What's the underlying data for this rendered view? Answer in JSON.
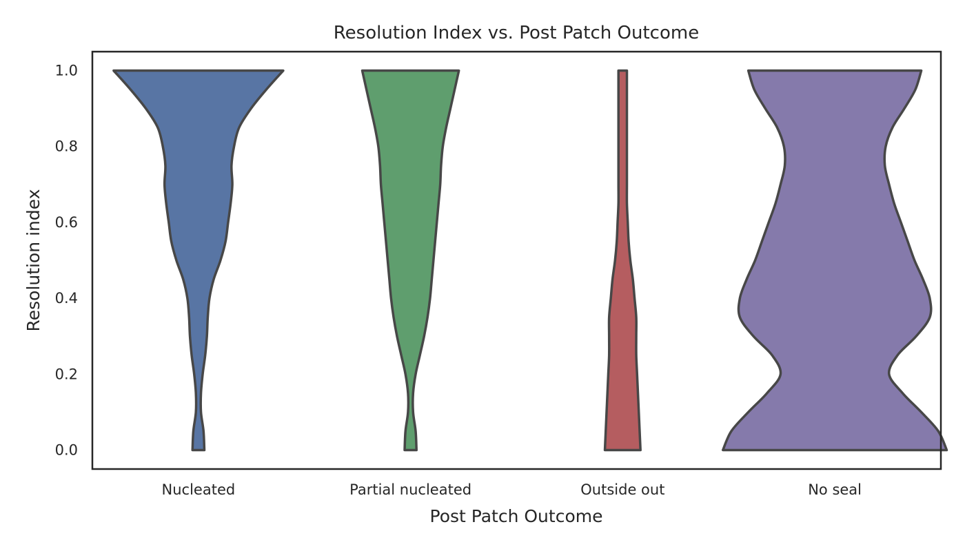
{
  "chart_data": {
    "type": "violin",
    "title": "Resolution Index vs. Post Patch Outcome",
    "xlabel": "Post Patch Outcome",
    "ylabel": "Resolution index",
    "ylim": [
      -0.05,
      1.05
    ],
    "yticks": [
      "0.0",
      "0.2",
      "0.4",
      "0.6",
      "0.8",
      "1.0"
    ],
    "ytick_values": [
      0.0,
      0.2,
      0.4,
      0.6,
      0.8,
      1.0
    ],
    "grid": false,
    "categories": [
      "Nucleated",
      "Partial nucleated",
      "Outside out",
      "No seal"
    ],
    "series": [
      {
        "category": "Nucleated",
        "color": "#5875a4",
        "profile": [
          [
            0.0,
            0.07
          ],
          [
            0.05,
            0.06
          ],
          [
            0.1,
            0.03
          ],
          [
            0.15,
            0.03
          ],
          [
            0.2,
            0.05
          ],
          [
            0.25,
            0.08
          ],
          [
            0.3,
            0.1
          ],
          [
            0.35,
            0.11
          ],
          [
            0.4,
            0.13
          ],
          [
            0.45,
            0.18
          ],
          [
            0.5,
            0.26
          ],
          [
            0.55,
            0.32
          ],
          [
            0.6,
            0.35
          ],
          [
            0.65,
            0.38
          ],
          [
            0.7,
            0.4
          ],
          [
            0.75,
            0.39
          ],
          [
            0.8,
            0.42
          ],
          [
            0.85,
            0.48
          ],
          [
            0.9,
            0.62
          ],
          [
            0.95,
            0.8
          ],
          [
            1.0,
            1.0
          ]
        ]
      },
      {
        "category": "Partial nucleated",
        "color": "#5f9e6e",
        "profile": [
          [
            0.0,
            0.07
          ],
          [
            0.05,
            0.06
          ],
          [
            0.1,
            0.03
          ],
          [
            0.15,
            0.03
          ],
          [
            0.2,
            0.06
          ],
          [
            0.25,
            0.11
          ],
          [
            0.3,
            0.16
          ],
          [
            0.35,
            0.2
          ],
          [
            0.4,
            0.23
          ],
          [
            0.45,
            0.25
          ],
          [
            0.5,
            0.27
          ],
          [
            0.55,
            0.29
          ],
          [
            0.6,
            0.31
          ],
          [
            0.65,
            0.33
          ],
          [
            0.7,
            0.35
          ],
          [
            0.75,
            0.36
          ],
          [
            0.8,
            0.38
          ],
          [
            0.85,
            0.42
          ],
          [
            0.9,
            0.47
          ],
          [
            0.95,
            0.52
          ],
          [
            1.0,
            0.57
          ]
        ]
      },
      {
        "category": "Outside out",
        "color": "#b55d60",
        "profile": [
          [
            0.0,
            0.21
          ],
          [
            0.05,
            0.2
          ],
          [
            0.1,
            0.19
          ],
          [
            0.15,
            0.18
          ],
          [
            0.2,
            0.17
          ],
          [
            0.25,
            0.16
          ],
          [
            0.3,
            0.16
          ],
          [
            0.35,
            0.16
          ],
          [
            0.4,
            0.14
          ],
          [
            0.45,
            0.12
          ],
          [
            0.5,
            0.09
          ],
          [
            0.55,
            0.07
          ],
          [
            0.6,
            0.06
          ],
          [
            0.65,
            0.05
          ],
          [
            0.7,
            0.05
          ],
          [
            0.75,
            0.05
          ],
          [
            0.8,
            0.05
          ],
          [
            0.85,
            0.05
          ],
          [
            0.9,
            0.05
          ],
          [
            0.95,
            0.05
          ],
          [
            1.0,
            0.05
          ]
        ]
      },
      {
        "category": "No seal",
        "color": "#857aab",
        "profile": [
          [
            0.0,
            1.32
          ],
          [
            0.05,
            1.22
          ],
          [
            0.1,
            1.02
          ],
          [
            0.15,
            0.8
          ],
          [
            0.2,
            0.64
          ],
          [
            0.25,
            0.74
          ],
          [
            0.3,
            0.96
          ],
          [
            0.35,
            1.12
          ],
          [
            0.4,
            1.12
          ],
          [
            0.45,
            1.04
          ],
          [
            0.5,
            0.94
          ],
          [
            0.55,
            0.86
          ],
          [
            0.6,
            0.78
          ],
          [
            0.65,
            0.7
          ],
          [
            0.7,
            0.64
          ],
          [
            0.75,
            0.59
          ],
          [
            0.8,
            0.6
          ],
          [
            0.85,
            0.68
          ],
          [
            0.9,
            0.82
          ],
          [
            0.95,
            0.95
          ],
          [
            1.0,
            1.02
          ]
        ]
      }
    ]
  }
}
